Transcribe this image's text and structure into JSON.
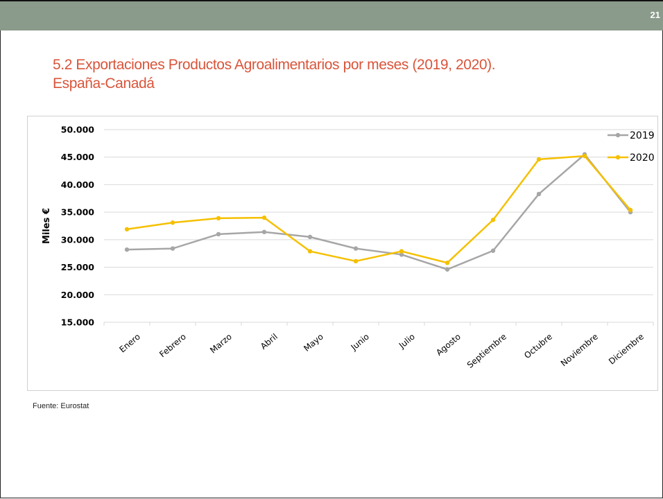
{
  "slide": {
    "number": "21",
    "title_line1": "5.2 Exportaciones Productos Agroalimentarios por meses (2019, 2020).",
    "title_line2": "España-Canadá",
    "source": "Fuente: Eurostat"
  },
  "colors": {
    "topbar": "#8a9a8b",
    "title": "#d9543a",
    "series_2019": "#a6a6a6",
    "series_2020": "#f5c000",
    "grid": "#d9d9d9"
  },
  "chart_data": {
    "type": "line",
    "ylabel": "Miles €",
    "xlabel": "",
    "ylim": [
      15000,
      50000
    ],
    "yticks": [
      15000,
      20000,
      25000,
      30000,
      35000,
      40000,
      45000,
      50000
    ],
    "ytick_labels": [
      "15.000",
      "20.000",
      "25.000",
      "30.000",
      "35.000",
      "40.000",
      "45.000",
      "50.000"
    ],
    "grid": true,
    "legend_position": "top-right",
    "categories": [
      "Enero",
      "Febrero",
      "Marzo",
      "Abril",
      "Mayo",
      "Junio",
      "Julio",
      "Agosto",
      "Septiembre",
      "Octubre",
      "Noviembre",
      "Diciembre"
    ],
    "series": [
      {
        "name": "2019",
        "color": "#a6a6a6",
        "values": [
          28200,
          28400,
          31000,
          31400,
          30500,
          28400,
          27300,
          24600,
          28000,
          38300,
          45500,
          35000
        ]
      },
      {
        "name": "2020",
        "color": "#f5c000",
        "values": [
          31900,
          33100,
          33900,
          34000,
          27900,
          26100,
          27900,
          25800,
          33600,
          44600,
          45200,
          35400
        ]
      }
    ]
  }
}
